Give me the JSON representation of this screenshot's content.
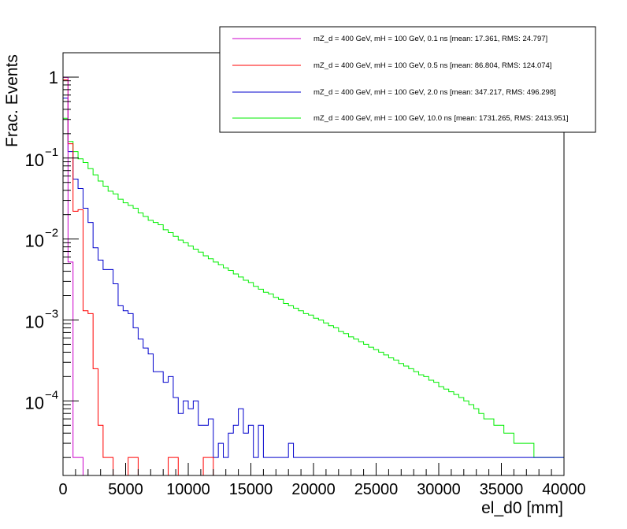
{
  "chart_data": {
    "type": "line",
    "style": "step-histogram",
    "xlabel": "el_d0 [mm]",
    "ylabel": "Frac. Events",
    "xlim": [
      0,
      40000
    ],
    "ylim": [
      1.2e-05,
      2
    ],
    "ylog": true,
    "grid": false,
    "legend_position": "top-right",
    "x_ticks": [
      "0",
      "5000",
      "10000",
      "15000",
      "20000",
      "25000",
      "30000",
      "35000",
      "40000"
    ],
    "y_ticks": [
      {
        "value": 1,
        "base": "1",
        "exp": ""
      },
      {
        "value": 0.1,
        "base": "10",
        "exp": "−1"
      },
      {
        "value": 0.01,
        "base": "10",
        "exp": "−2"
      },
      {
        "value": 0.001,
        "base": "10",
        "exp": "−3"
      },
      {
        "value": 0.0001,
        "base": "10",
        "exp": "−4"
      }
    ],
    "bin_width": 400,
    "series": [
      {
        "name": "mZ_d = 400 GeV, mH = 100 GeV, 0.1 ns [mean: 17.361, RMS: 24.797]",
        "color": "#cc00cc",
        "values": [
          0.99,
          0.0052,
          2e-05,
          2e-05
        ]
      },
      {
        "name": "mZ_d = 400 GeV, mH = 100 GeV, 0.5 ns [mean: 86.804, RMS: 124.074]",
        "color": "#ff0000",
        "values": [
          0.93,
          0.15,
          0.022,
          0.023,
          0.0013,
          0.0012,
          0.00025,
          5e-05,
          2e-05,
          2e-05,
          0,
          0,
          0,
          2e-05,
          2e-05,
          0,
          0,
          0,
          0,
          0,
          0,
          2e-05,
          2e-05,
          0,
          0,
          0,
          0,
          0,
          2e-05,
          2e-05
        ]
      },
      {
        "name": "mZ_d = 400 GeV, mH = 100 GeV, 2.0 ns [mean: 347.217, RMS: 496.298]",
        "color": "#0000cc",
        "values": [
          0.55,
          0.12,
          0.055,
          0.042,
          0.024,
          0.016,
          0.0078,
          0.0055,
          0.0042,
          0.0042,
          0.0028,
          0.0015,
          0.0013,
          0.0012,
          0.0008,
          0.00058,
          0.00045,
          0.00038,
          0.00023,
          0.00023,
          0.00017,
          0.0002,
          0.00011,
          7e-05,
          0.0001,
          8e-05,
          0.0001,
          5e-05,
          5e-05,
          6e-05,
          2e-05,
          3e-05,
          2e-05,
          4e-05,
          5e-05,
          8e-05,
          4e-05,
          5e-05,
          2e-05,
          5e-05,
          2e-05,
          2e-05,
          2e-05,
          2e-05,
          2e-05,
          3e-05,
          2e-05,
          2e-05,
          2e-05,
          2e-05,
          2e-05,
          2e-05,
          2e-05,
          2e-05,
          2e-05,
          2e-05,
          2e-05,
          2e-05,
          2e-05,
          2e-05,
          2e-05,
          2e-05,
          2e-05,
          2e-05,
          2e-05,
          2e-05,
          2e-05,
          2e-05,
          2e-05,
          2e-05,
          2e-05,
          2e-05,
          2e-05,
          2e-05,
          2e-05,
          2e-05,
          2e-05,
          2e-05,
          2e-05,
          2e-05,
          2e-05,
          2e-05,
          2e-05,
          2e-05,
          2e-05,
          2e-05,
          2e-05,
          2e-05,
          2e-05,
          2e-05,
          2e-05,
          2e-05,
          2e-05,
          2e-05,
          2e-05,
          2e-05,
          2e-05,
          2e-05,
          2e-05,
          2e-05
        ]
      },
      {
        "name": "mZ_d = 400 GeV, mH = 100 GeV, 10.0 ns [mean: 1731.265, RMS: 2413.951]",
        "color": "#00ee00",
        "values": [
          0.31,
          0.16,
          0.12,
          0.098,
          0.088,
          0.074,
          0.062,
          0.052,
          0.045,
          0.039,
          0.036,
          0.031,
          0.028,
          0.026,
          0.024,
          0.021,
          0.019,
          0.017,
          0.016,
          0.015,
          0.013,
          0.012,
          0.0108,
          0.0097,
          0.009,
          0.0082,
          0.0075,
          0.0069,
          0.0062,
          0.0057,
          0.0052,
          0.0048,
          0.0044,
          0.0041,
          0.0037,
          0.0034,
          0.0031,
          0.0029,
          0.0026,
          0.0024,
          0.0022,
          0.0021,
          0.0019,
          0.0018,
          0.0016,
          0.0015,
          0.0014,
          0.0013,
          0.0012,
          0.00115,
          0.00105,
          0.001,
          0.00092,
          0.00085,
          0.0008,
          0.00072,
          0.00068,
          0.00062,
          0.00058,
          0.00054,
          0.0005,
          0.00046,
          0.00043,
          0.0004,
          0.00037,
          0.00034,
          0.00032,
          0.00029,
          0.00027,
          0.00025,
          0.00023,
          0.00021,
          0.0002,
          0.00018,
          0.00017,
          0.00015,
          0.00014,
          0.00013,
          0.00012,
          0.00011,
          0.0001,
          9e-05,
          8e-05,
          7e-05,
          6e-05,
          6e-05,
          5e-05,
          5e-05,
          4e-05,
          4e-05,
          3e-05,
          3e-05,
          3e-05,
          3e-05,
          2e-05,
          2e-05,
          2e-05,
          2e-05,
          2e-05,
          2e-05
        ]
      }
    ]
  }
}
